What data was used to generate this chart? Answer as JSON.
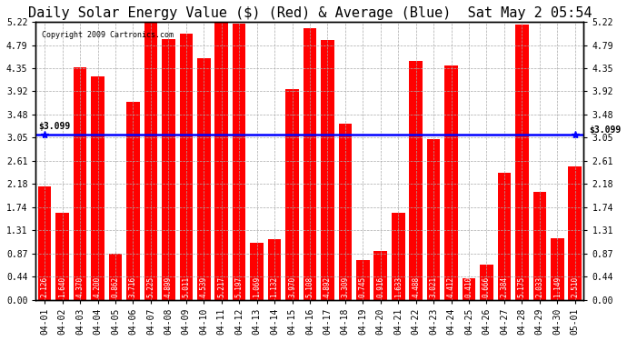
{
  "title": "Daily Solar Energy Value ($) (Red) & Average (Blue)  Sat May 2 05:54",
  "copyright": "Copyright 2009 Cartronics.com",
  "average_line": 3.099,
  "bar_color": "#FF0000",
  "avg_line_color": "#0000FF",
  "background_color": "#FFFFFF",
  "plot_bg_color": "#FFFFFF",
  "grid_color": "#AAAAAA",
  "categories": [
    "04-01",
    "04-02",
    "04-03",
    "04-04",
    "04-05",
    "04-06",
    "04-07",
    "04-08",
    "04-09",
    "04-10",
    "04-11",
    "04-12",
    "04-13",
    "04-14",
    "04-15",
    "04-16",
    "04-17",
    "04-18",
    "04-19",
    "04-20",
    "04-21",
    "04-22",
    "04-23",
    "04-24",
    "04-25",
    "04-26",
    "04-27",
    "04-28",
    "04-29",
    "04-30",
    "05-01"
  ],
  "values": [
    2.126,
    1.64,
    4.37,
    4.2,
    0.862,
    3.716,
    5.225,
    4.899,
    5.011,
    4.539,
    5.217,
    5.197,
    1.069,
    1.132,
    3.97,
    5.108,
    4.892,
    3.309,
    0.745,
    0.916,
    1.633,
    4.488,
    3.021,
    4.412,
    0.41,
    0.666,
    2.384,
    5.175,
    2.033,
    1.149,
    2.51
  ],
  "ylim": [
    0.0,
    5.22
  ],
  "yticks": [
    0.0,
    0.44,
    0.87,
    1.31,
    1.74,
    2.18,
    2.61,
    3.05,
    3.48,
    3.92,
    4.35,
    4.79,
    5.22
  ],
  "avg_label_left": "$3.099",
  "avg_label_right": "$3.099",
  "title_fontsize": 11,
  "tick_fontsize": 7,
  "bar_value_fontsize": 5.5,
  "avg_fontsize": 7
}
